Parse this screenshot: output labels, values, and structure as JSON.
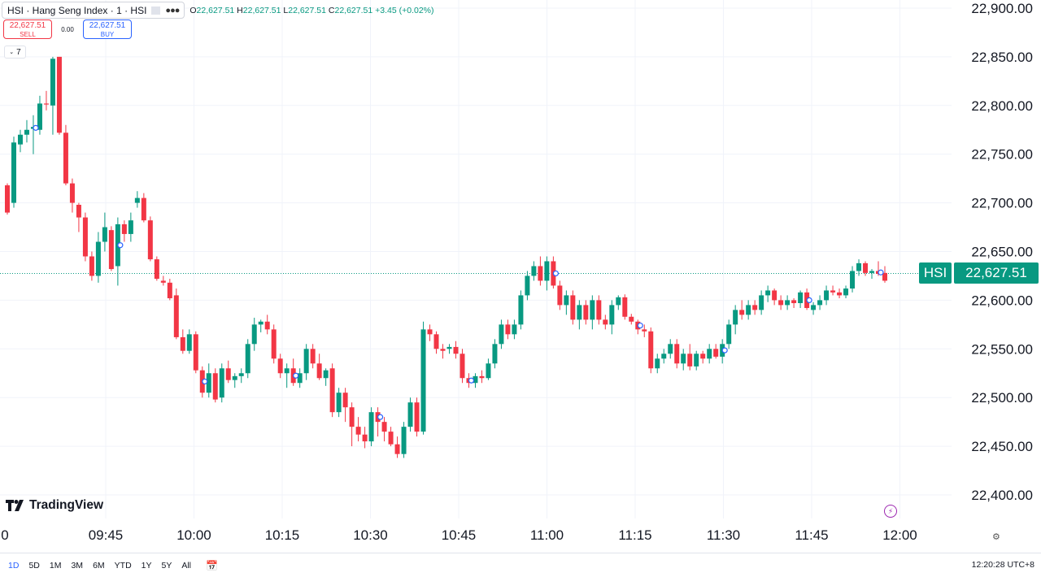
{
  "header": {
    "symbol_title": "HSI · Hang Seng Index · 1 · HSI",
    "o_label": "O",
    "o_val": "22,627.51",
    "h_label": "H",
    "h_val": "22,627.51",
    "l_label": "L",
    "l_val": "22,627.51",
    "c_label": "C",
    "c_val": "22,627.51",
    "change": "+3.45 (+0.02%)"
  },
  "trade": {
    "sell_price": "22,627.51",
    "sell_label": "SELL",
    "spread": "0.00",
    "buy_price": "22,627.51",
    "buy_label": "BUY"
  },
  "indicators_toggle": "7",
  "logo_text": "TradingView",
  "last_price": {
    "symbol": "HSI",
    "value": "22,627.51"
  },
  "bottom": {
    "ranges": [
      "1D",
      "5D",
      "1M",
      "3M",
      "6M",
      "YTD",
      "1Y",
      "5Y",
      "All"
    ],
    "active": "1D",
    "clock": "12:20:28 UTC+8"
  },
  "colors": {
    "up": "#089981",
    "down": "#f23645",
    "accent": "#2962ff"
  },
  "icons": {
    "calendar": "calendar-range-icon",
    "settings": "gear-icon",
    "alert": "bolt-icon"
  },
  "chart_data": {
    "type": "candlestick",
    "symbol": "HSI",
    "interval": "1 minute (shown as 3-min bars)",
    "ylim": [
      22380,
      22910
    ],
    "y_ticks": [
      "22,900.00",
      "22,850.00",
      "22,800.00",
      "22,750.00",
      "22,700.00",
      "22,650.00",
      "22,600.00",
      "22,550.00",
      "22,500.00",
      "22,450.00",
      "22,400.00"
    ],
    "y_tick_values": [
      22900,
      22850,
      22800,
      22750,
      22700,
      22650,
      22600,
      22550,
      22500,
      22450,
      22400
    ],
    "x_ticks": [
      "0",
      "09:45",
      "10:00",
      "10:15",
      "10:30",
      "10:45",
      "11:00",
      "11:15",
      "11:30",
      "11:45",
      "12:00"
    ],
    "x_tick_minutes": [
      -16,
      0,
      15,
      30,
      45,
      60,
      75,
      90,
      105,
      120,
      135
    ],
    "start_time": "09:29",
    "bar_minutes": 0.75,
    "last_price": 22627.51,
    "grid": true,
    "candles": [
      [
        22718,
        22720,
        22688,
        22690
      ],
      [
        22700,
        22768,
        22695,
        22762
      ],
      [
        22760,
        22775,
        22752,
        22770
      ],
      [
        22770,
        22785,
        22762,
        22775
      ],
      [
        22776,
        22790,
        22750,
        22778
      ],
      [
        22775,
        22810,
        22770,
        22802
      ],
      [
        22802,
        22815,
        22795,
        22801
      ],
      [
        22800,
        22850,
        22770,
        22848
      ],
      [
        22850,
        22850,
        22770,
        22772
      ],
      [
        22772,
        22780,
        22718,
        22720
      ],
      [
        22720,
        22725,
        22690,
        22700
      ],
      [
        22698,
        22700,
        22670,
        22685
      ],
      [
        22685,
        22690,
        22640,
        22645
      ],
      [
        22645,
        22650,
        22620,
        22625
      ],
      [
        22625,
        22670,
        22618,
        22660
      ],
      [
        22660,
        22690,
        22650,
        22675
      ],
      [
        22672,
        22676,
        22630,
        22632
      ],
      [
        22635,
        22685,
        22615,
        22678
      ],
      [
        22678,
        22682,
        22660,
        22668
      ],
      [
        22668,
        22690,
        22660,
        22682
      ],
      [
        22700,
        22712,
        22695,
        22705
      ],
      [
        22705,
        22710,
        22680,
        22682
      ],
      [
        22682,
        22686,
        22640,
        22642
      ],
      [
        22642,
        22645,
        22620,
        22622
      ],
      [
        22620,
        22625,
        22615,
        22618
      ],
      [
        22618,
        22622,
        22600,
        22602
      ],
      [
        22605,
        22612,
        22560,
        22562
      ],
      [
        22562,
        22570,
        22545,
        22548
      ],
      [
        22548,
        22570,
        22545,
        22565
      ],
      [
        22565,
        22568,
        22525,
        22528
      ],
      [
        22528,
        22532,
        22500,
        22505
      ],
      [
        22505,
        22535,
        22500,
        22525
      ],
      [
        22525,
        22530,
        22495,
        22498
      ],
      [
        22500,
        22535,
        22495,
        22530
      ],
      [
        22530,
        22538,
        22515,
        22518
      ],
      [
        22518,
        22525,
        22510,
        22522
      ],
      [
        22522,
        22530,
        22515,
        22525
      ],
      [
        22525,
        22560,
        22520,
        22555
      ],
      [
        22555,
        22582,
        22548,
        22575
      ],
      [
        22575,
        22580,
        22567,
        22578
      ],
      [
        22578,
        22585,
        22565,
        22570
      ],
      [
        22570,
        22575,
        22535,
        22540
      ],
      [
        22540,
        22545,
        22520,
        22525
      ],
      [
        22525,
        22535,
        22510,
        22530
      ],
      [
        22530,
        22540,
        22512,
        22515
      ],
      [
        22515,
        22530,
        22510,
        22525
      ],
      [
        22525,
        22555,
        22518,
        22550
      ],
      [
        22550,
        22555,
        22530,
        22535
      ],
      [
        22535,
        22545,
        22518,
        22520
      ],
      [
        22520,
        22530,
        22512,
        22528
      ],
      [
        22530,
        22535,
        22480,
        22485
      ],
      [
        22485,
        22510,
        22480,
        22505
      ],
      [
        22505,
        22510,
        22475,
        22490
      ],
      [
        22490,
        22495,
        22450,
        22470
      ],
      [
        22470,
        22480,
        22455,
        22462
      ],
      [
        22462,
        22470,
        22448,
        22455
      ],
      [
        22455,
        22490,
        22450,
        22485
      ],
      [
        22485,
        22490,
        22460,
        22475
      ],
      [
        22475,
        22480,
        22455,
        22465
      ],
      [
        22465,
        22470,
        22450,
        22452
      ],
      [
        22452,
        22460,
        22438,
        22442
      ],
      [
        22442,
        22475,
        22438,
        22470
      ],
      [
        22470,
        22500,
        22465,
        22495
      ],
      [
        22495,
        22500,
        22460,
        22465
      ],
      [
        22465,
        22578,
        22462,
        22570
      ],
      [
        22570,
        22575,
        22558,
        22565
      ],
      [
        22565,
        22568,
        22545,
        22550
      ],
      [
        22550,
        22555,
        22540,
        22548
      ],
      [
        22550,
        22555,
        22545,
        22552
      ],
      [
        22552,
        22558,
        22540,
        22545
      ],
      [
        22545,
        22550,
        22515,
        22520
      ],
      [
        22520,
        22525,
        22510,
        22515
      ],
      [
        22515,
        22525,
        22510,
        22522
      ],
      [
        22522,
        22528,
        22515,
        22520
      ],
      [
        22520,
        22540,
        22518,
        22535
      ],
      [
        22535,
        22560,
        22530,
        22555
      ],
      [
        22555,
        22580,
        22550,
        22575
      ],
      [
        22575,
        22580,
        22560,
        22565
      ],
      [
        22565,
        22580,
        22560,
        22575
      ],
      [
        22575,
        22610,
        22570,
        22605
      ],
      [
        22605,
        22630,
        22600,
        22625
      ],
      [
        22625,
        22640,
        22620,
        22635
      ],
      [
        22635,
        22645,
        22615,
        22620
      ],
      [
        22620,
        22645,
        22610,
        22640
      ],
      [
        22640,
        22645,
        22612,
        22615
      ],
      [
        22615,
        22620,
        22590,
        22595
      ],
      [
        22595,
        22610,
        22585,
        22605
      ],
      [
        22605,
        22610,
        22575,
        22580
      ],
      [
        22580,
        22600,
        22570,
        22595
      ],
      [
        22595,
        22600,
        22575,
        22580
      ],
      [
        22580,
        22605,
        22570,
        22600
      ],
      [
        22600,
        22605,
        22575,
        22580
      ],
      [
        22580,
        22585,
        22570,
        22575
      ],
      [
        22575,
        22600,
        22565,
        22595
      ],
      [
        22595,
        22605,
        22590,
        22603
      ],
      [
        22603,
        22606,
        22580,
        22583
      ],
      [
        22583,
        22586,
        22575,
        22578
      ],
      [
        22578,
        22580,
        22565,
        22570
      ],
      [
        22570,
        22575,
        22562,
        22568
      ],
      [
        22568,
        22572,
        22525,
        22530
      ],
      [
        22530,
        22545,
        22525,
        22540
      ],
      [
        22540,
        22550,
        22535,
        22545
      ],
      [
        22545,
        22560,
        22540,
        22555
      ],
      [
        22555,
        22560,
        22530,
        22535
      ],
      [
        22535,
        22550,
        22528,
        22545
      ],
      [
        22545,
        22555,
        22528,
        22532
      ],
      [
        22532,
        22548,
        22528,
        22545
      ],
      [
        22545,
        22548,
        22535,
        22540
      ],
      [
        22540,
        22555,
        22535,
        22550
      ],
      [
        22550,
        22555,
        22540,
        22542
      ],
      [
        22542,
        22560,
        22535,
        22555
      ],
      [
        22555,
        22580,
        22550,
        22575
      ],
      [
        22575,
        22595,
        22565,
        22590
      ],
      [
        22590,
        22600,
        22580,
        22585
      ],
      [
        22585,
        22600,
        22580,
        22595
      ],
      [
        22595,
        22600,
        22585,
        22590
      ],
      [
        22590,
        22610,
        22585,
        22605
      ],
      [
        22605,
        22615,
        22598,
        22610
      ],
      [
        22610,
        22612,
        22595,
        22600
      ],
      [
        22600,
        22605,
        22590,
        22595
      ],
      [
        22595,
        22605,
        22590,
        22600
      ],
      [
        22600,
        22602,
        22592,
        22597
      ],
      [
        22597,
        22610,
        22592,
        22608
      ],
      [
        22608,
        22612,
        22590,
        22592
      ],
      [
        22590,
        22598,
        22585,
        22595
      ],
      [
        22595,
        22605,
        22590,
        22600
      ],
      [
        22600,
        22615,
        22595,
        22610
      ],
      [
        22610,
        22615,
        22605,
        22608
      ],
      [
        22608,
        22612,
        22602,
        22605
      ],
      [
        22605,
        22615,
        22602,
        22612
      ],
      [
        22612,
        22635,
        22608,
        22630
      ],
      [
        22630,
        22642,
        22625,
        22638
      ],
      [
        22638,
        22640,
        22625,
        22628
      ],
      [
        22628,
        22632,
        22622,
        22630
      ],
      [
        22630,
        22640,
        22625,
        22627
      ],
      [
        22628,
        22635,
        22618,
        22620
      ]
    ],
    "markers_at": [
      4,
      17,
      30,
      44,
      57,
      71,
      84,
      97,
      110,
      123,
      134
    ]
  }
}
